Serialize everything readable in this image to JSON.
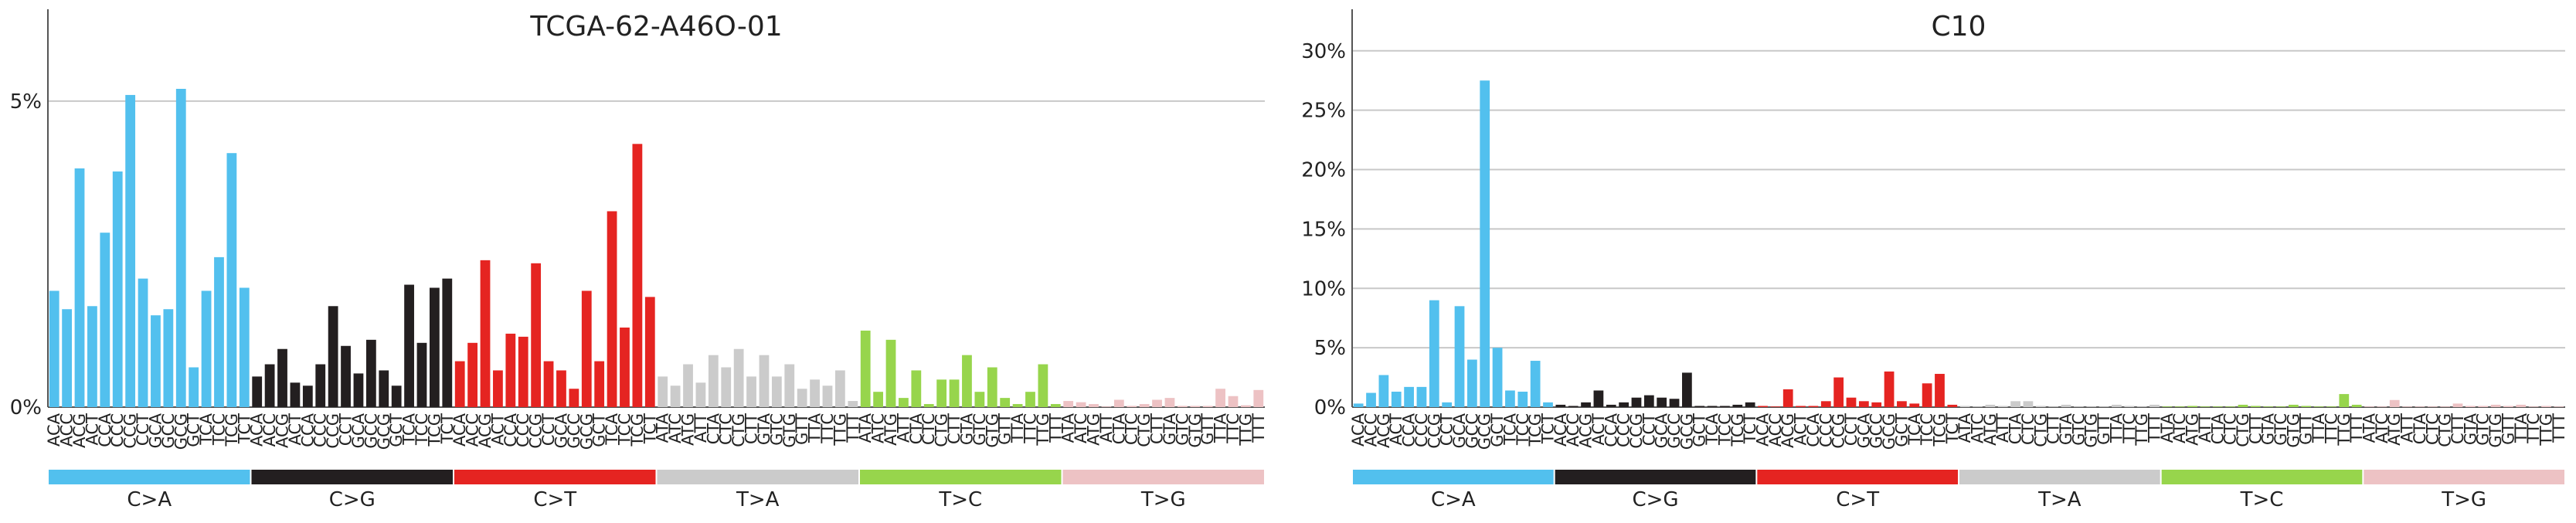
{
  "colors": {
    "C>A": "#52c0ee",
    "C>G": "#231f20",
    "C>T": "#e52421",
    "T>A": "#cbcbcb",
    "T>C": "#97d54c",
    "T>G": "#edc2c4"
  },
  "mutation_types": [
    "C>A",
    "C>G",
    "C>T",
    "T>A",
    "T>C",
    "T>G"
  ],
  "chart_data": [
    {
      "type": "bar",
      "title": "TCGA-62-A46O-01",
      "xlabel": "",
      "ylabel": "",
      "ylim": [
        0,
        0.065
      ],
      "yticks": [
        0,
        0.05
      ],
      "ytick_labels": [
        "0%",
        "5%"
      ],
      "grid": "horizontal",
      "categories": [
        "ACA",
        "ACC",
        "ACG",
        "ACT",
        "CCA",
        "CCC",
        "CCG",
        "CCT",
        "GCA",
        "GCC",
        "GCG",
        "GCT",
        "TCA",
        "TCC",
        "TCG",
        "TCT",
        "ACA",
        "ACC",
        "ACG",
        "ACT",
        "CCA",
        "CCC",
        "CCG",
        "CCT",
        "GCA",
        "GCC",
        "GCG",
        "GCT",
        "TCA",
        "TCC",
        "TCG",
        "TCT",
        "ACA",
        "ACC",
        "ACG",
        "ACT",
        "CCA",
        "CCC",
        "CCG",
        "CCT",
        "GCA",
        "GCC",
        "GCG",
        "GCT",
        "TCA",
        "TCC",
        "TCG",
        "TCT",
        "ATA",
        "ATC",
        "ATG",
        "ATT",
        "CTA",
        "CTC",
        "CTG",
        "CTT",
        "GTA",
        "GTC",
        "GTG",
        "GTT",
        "TTA",
        "TTC",
        "TTG",
        "TTT",
        "ATA",
        "ATC",
        "ATG",
        "ATT",
        "CTA",
        "CTC",
        "CTG",
        "CTT",
        "GTA",
        "GTC",
        "GTG",
        "GTT",
        "TTA",
        "TTC",
        "TTG",
        "TTT",
        "ATA",
        "ATC",
        "ATG",
        "ATT",
        "CTA",
        "CTC",
        "CTG",
        "CTT",
        "GTA",
        "GTC",
        "GTG",
        "GTT",
        "TTA",
        "TTC",
        "TTG",
        "TTT"
      ],
      "values": [
        0.019,
        0.016,
        0.039,
        0.0165,
        0.0285,
        0.0385,
        0.051,
        0.021,
        0.015,
        0.016,
        0.052,
        0.0065,
        0.019,
        0.0245,
        0.0415,
        0.0195,
        0.005,
        0.007,
        0.0095,
        0.004,
        0.0035,
        0.007,
        0.0165,
        0.01,
        0.0055,
        0.011,
        0.006,
        0.0035,
        0.02,
        0.0105,
        0.0195,
        0.021,
        0.0075,
        0.0105,
        0.024,
        0.006,
        0.012,
        0.0115,
        0.0235,
        0.0075,
        0.006,
        0.003,
        0.019,
        0.0075,
        0.032,
        0.013,
        0.043,
        0.018,
        0.005,
        0.0035,
        0.007,
        0.004,
        0.0085,
        0.0065,
        0.0095,
        0.005,
        0.0085,
        0.005,
        0.007,
        0.003,
        0.0045,
        0.0035,
        0.006,
        0.001,
        0.0125,
        0.0025,
        0.011,
        0.0015,
        0.006,
        0.0005,
        0.0045,
        0.0045,
        0.0085,
        0.0025,
        0.0065,
        0.0015,
        0.0005,
        0.0025,
        0.007,
        0.0005,
        0.001,
        0.0008,
        0.0005,
        0.0001,
        0.0012,
        0.0002,
        0.0005,
        0.0012,
        0.0015,
        0.0002,
        0.0002,
        0.0002,
        0.003,
        0.0018,
        0.0003,
        0.0028
      ]
    },
    {
      "type": "bar",
      "title": "C10",
      "xlabel": "",
      "ylabel": "",
      "ylim": [
        0,
        0.335
      ],
      "yticks": [
        0,
        0.05,
        0.1,
        0.15,
        0.2,
        0.25,
        0.3
      ],
      "ytick_labels": [
        "0%",
        "5%",
        "10%",
        "15%",
        "20%",
        "25%",
        "30%"
      ],
      "grid": "horizontal",
      "categories": [
        "ACA",
        "ACC",
        "ACG",
        "ACT",
        "CCA",
        "CCC",
        "CCG",
        "CCT",
        "GCA",
        "GCC",
        "GCG",
        "GCT",
        "TCA",
        "TCC",
        "TCG",
        "TCT",
        "ACA",
        "ACC",
        "ACG",
        "ACT",
        "CCA",
        "CCC",
        "CCG",
        "CCT",
        "GCA",
        "GCC",
        "GCG",
        "GCT",
        "TCA",
        "TCC",
        "TCG",
        "TCT",
        "ACA",
        "ACC",
        "ACG",
        "ACT",
        "CCA",
        "CCC",
        "CCG",
        "CCT",
        "GCA",
        "GCC",
        "GCG",
        "GCT",
        "TCA",
        "TCC",
        "TCG",
        "TCT",
        "ATA",
        "ATC",
        "ATG",
        "ATT",
        "CTA",
        "CTC",
        "CTG",
        "CTT",
        "GTA",
        "GTC",
        "GTG",
        "GTT",
        "TTA",
        "TTC",
        "TTG",
        "TTT",
        "ATA",
        "ATC",
        "ATG",
        "ATT",
        "CTA",
        "CTC",
        "CTG",
        "CTT",
        "GTA",
        "GTC",
        "GTG",
        "GTT",
        "TTA",
        "TTC",
        "TTG",
        "TTT",
        "ATA",
        "ATC",
        "ATG",
        "ATT",
        "CTA",
        "CTC",
        "CTG",
        "CTT",
        "GTA",
        "GTC",
        "GTG",
        "GTT",
        "TTA",
        "TTC",
        "TTG",
        "TTT"
      ],
      "values": [
        0.003,
        0.012,
        0.027,
        0.013,
        0.017,
        0.017,
        0.09,
        0.004,
        0.085,
        0.04,
        0.275,
        0.05,
        0.014,
        0.013,
        0.039,
        0.004,
        0.002,
        0.001,
        0.004,
        0.014,
        0.002,
        0.004,
        0.008,
        0.01,
        0.008,
        0.007,
        0.029,
        0.001,
        0.001,
        0.001,
        0.002,
        0.004,
        0.001,
        0.0005,
        0.015,
        0.001,
        0.001,
        0.005,
        0.025,
        0.008,
        0.005,
        0.004,
        0.03,
        0.005,
        0.003,
        0.02,
        0.028,
        0.002,
        0.001,
        0.0005,
        0.002,
        0.001,
        0.005,
        0.005,
        0.001,
        0.0005,
        0.002,
        0.0005,
        0.0005,
        0.0005,
        0.002,
        0.001,
        0.0005,
        0.002,
        0.0005,
        0.0005,
        0.001,
        0.0005,
        0.0005,
        0.0005,
        0.002,
        0.001,
        0.0005,
        0.0005,
        0.002,
        0.001,
        0.0005,
        0.0005,
        0.011,
        0.002,
        0.0005,
        0.0005,
        0.006,
        0.0005,
        0.0005,
        0.0005,
        0.0005,
        0.003,
        0.001,
        0.001,
        0.002,
        0.001,
        0.002,
        0.0005,
        0.001,
        0.0005
      ]
    }
  ]
}
